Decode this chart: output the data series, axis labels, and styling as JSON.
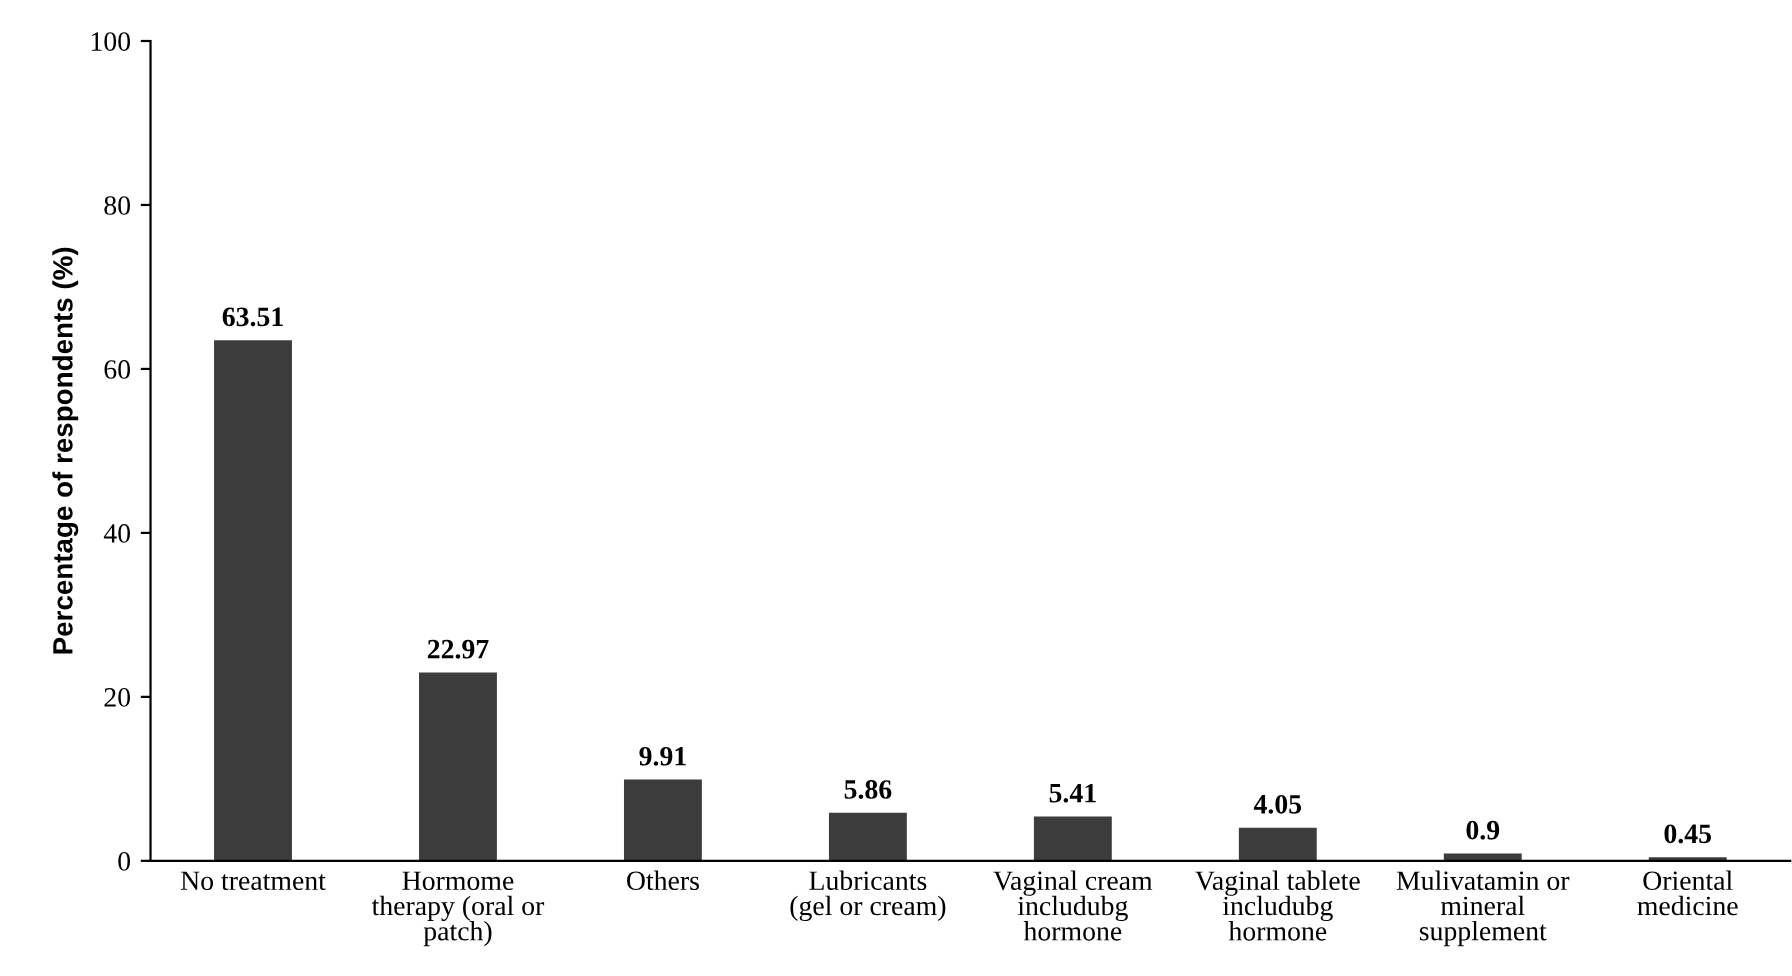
{
  "chart_data": {
    "type": "bar",
    "ylabel": "Percentage of respondents (%)",
    "categories": [
      "No treatment",
      "Hormome\ntherapy (oral or\npatch)",
      "Others",
      "Lubricants\n(gel or cream)",
      "Vaginal cream\nincludubg\nhormone",
      "Vaginal tablete\nincludubg\nhormone",
      "Mulivatamin or\nmineral\nsupplement",
      "Oriental\nmedicine"
    ],
    "values": [
      63.51,
      22.97,
      9.91,
      5.86,
      5.41,
      4.05,
      0.9,
      0.45
    ],
    "color": "#3c3c3c",
    "ylim": [
      0,
      100
    ],
    "yticks": [
      0,
      20,
      40,
      60,
      80,
      100
    ],
    "grid": false,
    "data_labels": true
  }
}
